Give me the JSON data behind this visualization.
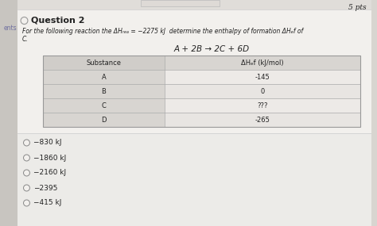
{
  "pts_label": "5 pts",
  "question_label": "Question 2",
  "question_line1": "For the following reaction the ΔHᵣₑₐ = −2275 kJ  determine the enthalpy of formation ΔHₑf of",
  "question_line2": "C.",
  "reaction": "A + 2B → 2C + 6D",
  "table_header_col1": "Substance",
  "table_header_col2": "ΔHₑf (kJ/mol)",
  "table_rows": [
    [
      "A",
      "-145"
    ],
    [
      "B",
      "0"
    ],
    [
      "C",
      "???"
    ],
    [
      "D",
      "-265"
    ]
  ],
  "choices": [
    "−830 kJ",
    "−1860 kJ",
    "−2160 kJ",
    "−2395",
    "−415 kJ"
  ],
  "bg_color": "#d8d5d0",
  "panel_color": "#f2f0ed",
  "sidebar_color": "#c8c5c0",
  "table_left_col_color": "#dddbd7",
  "table_right_col_color": "#f0eeed",
  "table_header_right_color": "#e8e5e2",
  "border_color": "#aaaaaa",
  "text_color": "#222222",
  "light_text": "#666666",
  "sidebar_text": "#7070a0"
}
